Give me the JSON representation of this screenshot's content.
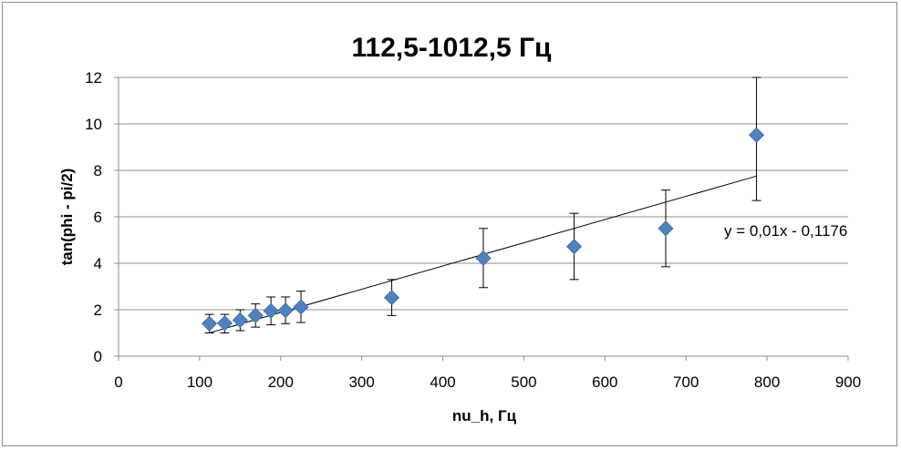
{
  "chart_data": {
    "type": "scatter",
    "title": "112,5-1012,5 Гц",
    "xlabel": "nu_h, Гц",
    "ylabel": "tan(phi - pi/2)",
    "xlim": [
      0,
      900
    ],
    "ylim": [
      0,
      12
    ],
    "x_ticks": [
      "0",
      "100",
      "200",
      "300",
      "400",
      "500",
      "600",
      "700",
      "800",
      "900"
    ],
    "y_ticks": [
      "0",
      "2",
      "4",
      "6",
      "8",
      "10",
      "12"
    ],
    "grid": true,
    "legend": "none",
    "marker_color": "#4f81bd",
    "points": [
      {
        "x": 112,
        "y": 1.4,
        "yerr_low": 1.0,
        "yerr_high": 1.8
      },
      {
        "x": 131,
        "y": 1.42,
        "yerr_low": 1.0,
        "yerr_high": 1.8
      },
      {
        "x": 150,
        "y": 1.55,
        "yerr_low": 1.1,
        "yerr_high": 2.0
      },
      {
        "x": 169,
        "y": 1.75,
        "yerr_low": 1.25,
        "yerr_high": 2.25
      },
      {
        "x": 188,
        "y": 1.95,
        "yerr_low": 1.35,
        "yerr_high": 2.55
      },
      {
        "x": 206,
        "y": 1.97,
        "yerr_low": 1.4,
        "yerr_high": 2.55
      },
      {
        "x": 225,
        "y": 2.12,
        "yerr_low": 1.45,
        "yerr_high": 2.8
      },
      {
        "x": 337,
        "y": 2.52,
        "yerr_low": 1.75,
        "yerr_high": 3.3
      },
      {
        "x": 450,
        "y": 4.22,
        "yerr_low": 2.95,
        "yerr_high": 5.5
      },
      {
        "x": 562,
        "y": 4.72,
        "yerr_low": 3.3,
        "yerr_high": 6.15
      },
      {
        "x": 675,
        "y": 5.5,
        "yerr_low": 3.85,
        "yerr_high": 7.15
      },
      {
        "x": 787,
        "y": 9.52,
        "yerr_low": 6.7,
        "yerr_high": 12.0
      }
    ],
    "trendline": {
      "slope": 0.01,
      "intercept": -0.1176,
      "x_range": [
        112,
        787
      ],
      "equation": "y = 0,01x - 0,1176"
    }
  }
}
